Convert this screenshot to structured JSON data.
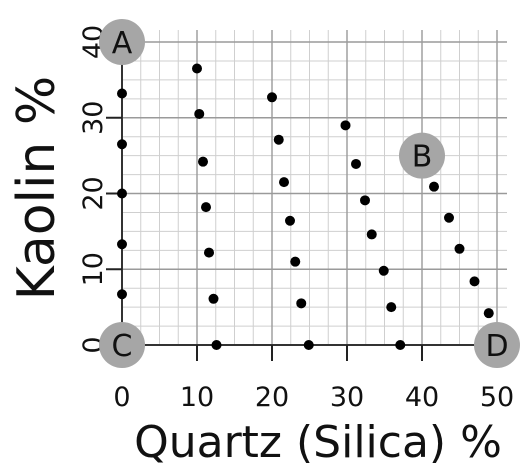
{
  "chart_data": {
    "type": "scatter",
    "xlabel": "Quartz (Silica) %",
    "ylabel": "Kaolin %",
    "xlim": [
      0,
      50
    ],
    "ylim": [
      0,
      40
    ],
    "x_ticks": [
      "0",
      "10",
      "20",
      "30",
      "40",
      "50"
    ],
    "y_ticks": [
      "0",
      "10",
      "20",
      "30",
      "40"
    ],
    "grid": true,
    "corner_labels": [
      {
        "label": "A",
        "x": 0,
        "y": 40
      },
      {
        "label": "B",
        "x": 40,
        "y": 25
      },
      {
        "label": "C",
        "x": 0,
        "y": 0
      },
      {
        "label": "D",
        "x": 50,
        "y": 0
      }
    ],
    "points": [
      {
        "x": 0,
        "y": 33.2
      },
      {
        "x": 0,
        "y": 26.5
      },
      {
        "x": 0,
        "y": 20
      },
      {
        "x": 0,
        "y": 13.3
      },
      {
        "x": 0,
        "y": 6.7
      },
      {
        "x": 10,
        "y": 36.5
      },
      {
        "x": 10.3,
        "y": 30.5
      },
      {
        "x": 10.8,
        "y": 24.2
      },
      {
        "x": 11.2,
        "y": 18.2
      },
      {
        "x": 11.6,
        "y": 12.2
      },
      {
        "x": 12.2,
        "y": 6.1
      },
      {
        "x": 12.6,
        "y": 0
      },
      {
        "x": 20,
        "y": 32.7
      },
      {
        "x": 20.9,
        "y": 27.1
      },
      {
        "x": 21.6,
        "y": 21.5
      },
      {
        "x": 22.4,
        "y": 16.4
      },
      {
        "x": 23.1,
        "y": 11
      },
      {
        "x": 23.9,
        "y": 5.5
      },
      {
        "x": 24.9,
        "y": 0
      },
      {
        "x": 29.8,
        "y": 29
      },
      {
        "x": 31.2,
        "y": 23.9
      },
      {
        "x": 32.4,
        "y": 19.1
      },
      {
        "x": 33.3,
        "y": 14.6
      },
      {
        "x": 34.9,
        "y": 9.8
      },
      {
        "x": 35.9,
        "y": 5
      },
      {
        "x": 37.1,
        "y": 0
      },
      {
        "x": 41.6,
        "y": 20.9
      },
      {
        "x": 43.6,
        "y": 16.8
      },
      {
        "x": 45,
        "y": 12.7
      },
      {
        "x": 47,
        "y": 8.4
      },
      {
        "x": 48.9,
        "y": 4.2
      }
    ]
  }
}
